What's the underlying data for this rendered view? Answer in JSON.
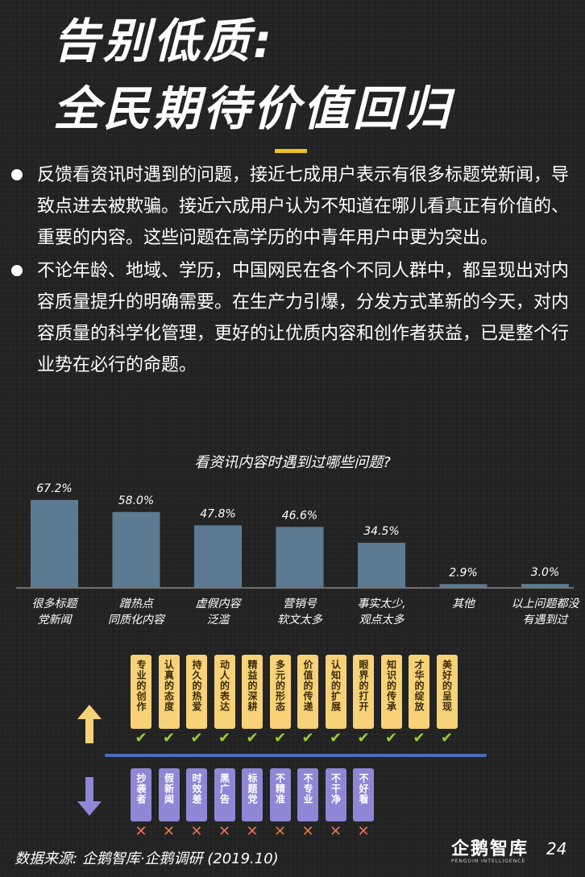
{
  "title": {
    "line1": "告别低质:",
    "line2": "全民期待价值回归"
  },
  "bullets": [
    "反馈看资讯时遇到的问题，接近七成用户表示有很多标题党新闻，导致点进去被欺骗。接近六成用户认为不知道在哪儿看真正有价值的、重要的内容。这些问题在高学历的中青年用户中更为突出。",
    "不论年龄、地域、学历，中国网民在各个不同人群中，都呈现出对内容质量提升的明确需要。在生产力引爆，分发方式革新的今天，对内容质量的科学化管理，更好的让优质内容和创作者获益，已是整个行业势在必行的命题。"
  ],
  "chart_data": {
    "type": "bar",
    "title": "看资讯内容时遇到过哪些问题?",
    "categories": [
      [
        "很多标题",
        "党新闻"
      ],
      [
        "蹭热点",
        "同质化内容"
      ],
      [
        "虚假内容",
        "泛滥"
      ],
      [
        "营销号",
        "软文太多"
      ],
      [
        "事实太少,",
        "观点太多"
      ],
      [
        "其他"
      ],
      [
        "以上问题都没",
        "有遇到过"
      ]
    ],
    "values": [
      67.2,
      58.0,
      47.8,
      46.6,
      34.5,
      2.9,
      3.0
    ],
    "value_labels": [
      "67.2%",
      "58.0%",
      "47.8%",
      "46.6%",
      "34.5%",
      "2.9%",
      "3.0%"
    ],
    "ylim": [
      0,
      80
    ],
    "bar_color": "#5c7b92"
  },
  "good_items": [
    "专业的创作",
    "认真的态度",
    "持久的热爱",
    "动人的表达",
    "精益的深耕",
    "多元的形态",
    "价值的传递",
    "认知的扩展",
    "眼界的打开",
    "知识的传承",
    "才华的绽放",
    "美好的呈现"
  ],
  "bad_items": [
    "抄袭者",
    "假新闻",
    "时效差",
    "黑广告",
    "标题党",
    "不精准",
    "不专业",
    "不干净",
    "不好看"
  ],
  "marks": {
    "check": "✔",
    "cross": "✕"
  },
  "colors": {
    "accent": "#f0c419",
    "good_card": "#f7d278",
    "bad_card": "#8f87d6",
    "up_arrow": "#f7d278",
    "down_arrow": "#8f87d6"
  },
  "footer": {
    "source": "数据来源: 企鹅智库·企鹅调研 (2019.10)",
    "logo": "企鹅智库",
    "logo_sub": "PENGUIN INTELLIGENCE",
    "page": "24"
  }
}
